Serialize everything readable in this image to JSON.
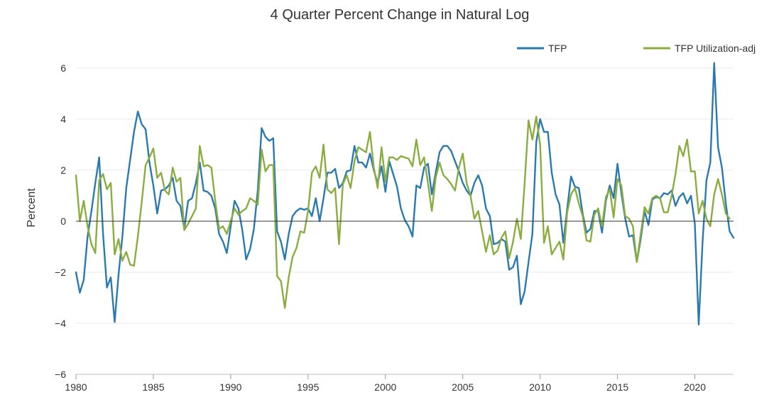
{
  "chart_data": {
    "type": "line",
    "title": "4 Quarter Percent Change in Natural Log",
    "xlabel": "",
    "ylabel": "Percent",
    "xlim": [
      1980,
      2022.5
    ],
    "ylim": [
      -6,
      6
    ],
    "x_ticks": [
      1980,
      1985,
      1990,
      1995,
      2000,
      2005,
      2010,
      2015,
      2020
    ],
    "y_ticks": [
      -6,
      -4,
      -2,
      0,
      2,
      4,
      6
    ],
    "y_tick_labels": [
      "−6",
      "−4",
      "−2",
      "0",
      "2",
      "4",
      "6"
    ],
    "grid": true,
    "legend_position": "top-right",
    "x_start": 1980,
    "x_step": 0.25,
    "series": [
      {
        "name": "TFP",
        "color": "#2a7ab0",
        "values": [
          -2.0,
          -2.8,
          -2.3,
          -0.6,
          0.4,
          1.5,
          2.5,
          -0.5,
          -2.6,
          -2.2,
          -3.95,
          -2.1,
          -0.6,
          1.3,
          2.4,
          3.5,
          4.3,
          3.8,
          3.6,
          2.3,
          1.4,
          0.3,
          1.2,
          1.25,
          1.4,
          1.7,
          0.8,
          0.6,
          -0.3,
          0.8,
          0.9,
          1.5,
          2.3,
          1.2,
          1.15,
          1.0,
          0.5,
          -0.5,
          -0.8,
          -1.25,
          -0.2,
          0.8,
          0.5,
          -0.35,
          -1.5,
          -1.1,
          -0.3,
          1.2,
          3.65,
          3.3,
          3.15,
          3.25,
          -0.4,
          -0.8,
          -1.5,
          -0.5,
          0.2,
          0.4,
          0.5,
          0.45,
          0.5,
          0.2,
          0.9,
          0.0,
          0.9,
          1.9,
          1.9,
          2.05,
          1.3,
          1.5,
          1.95,
          2.0,
          2.95,
          2.3,
          2.3,
          2.1,
          2.65,
          2.0,
          1.5,
          2.15,
          1.15,
          2.35,
          1.85,
          1.35,
          0.5,
          0.05,
          -0.2,
          -0.6,
          1.4,
          1.3,
          2.1,
          2.25,
          1.05,
          1.9,
          2.7,
          2.95,
          2.95,
          2.75,
          2.35,
          1.95,
          1.5,
          1.2,
          1.0,
          1.5,
          1.8,
          1.4,
          0.5,
          0.2,
          -0.9,
          -0.85,
          -0.7,
          -0.8,
          -1.9,
          -1.8,
          -1.35,
          -3.25,
          -2.75,
          -1.6,
          -0.5,
          3.1,
          4.0,
          3.5,
          3.5,
          1.9,
          1.05,
          0.65,
          -0.85,
          0.5,
          1.75,
          1.35,
          1.3,
          0.3,
          -0.45,
          -0.3,
          0.4,
          0.4,
          -0.45,
          0.8,
          1.4,
          0.9,
          2.25,
          1.1,
          0.1,
          -0.6,
          -0.55,
          -1.6,
          -0.7,
          0.4,
          -0.15,
          0.85,
          0.95,
          0.9,
          1.1,
          1.05,
          1.2,
          0.6,
          0.95,
          1.1,
          0.7,
          1.0,
          -0.1,
          -4.05,
          -0.8,
          1.6,
          2.3,
          6.2,
          2.9,
          2.1,
          0.7,
          -0.4,
          -0.65
        ]
      },
      {
        "name": "TFP Utilization-adj",
        "color": "#8bad3f",
        "values": [
          1.8,
          0.0,
          0.8,
          -0.2,
          -0.9,
          -1.25,
          1.6,
          1.85,
          1.25,
          1.5,
          -1.3,
          -0.7,
          -1.55,
          -1.2,
          -1.7,
          -1.75,
          -0.6,
          0.75,
          2.2,
          2.5,
          2.85,
          1.7,
          1.9,
          1.2,
          1.05,
          2.1,
          1.55,
          1.7,
          -0.35,
          -0.1,
          0.2,
          0.5,
          2.95,
          2.15,
          2.2,
          2.1,
          0.8,
          -0.3,
          -0.2,
          -0.5,
          0.0,
          0.5,
          0.25,
          0.4,
          0.5,
          0.9,
          0.8,
          0.65,
          2.8,
          1.95,
          2.2,
          2.2,
          -2.15,
          -2.35,
          -3.4,
          -2.2,
          -1.4,
          -1.05,
          -0.4,
          -0.45,
          0.4,
          1.9,
          2.15,
          1.7,
          3.0,
          1.25,
          1.1,
          1.3,
          -0.9,
          1.45,
          1.8,
          1.3,
          2.35,
          2.9,
          2.8,
          2.7,
          3.5,
          2.1,
          1.3,
          2.9,
          1.55,
          2.5,
          2.5,
          2.4,
          2.55,
          2.5,
          2.45,
          2.15,
          3.2,
          2.2,
          2.5,
          1.5,
          0.4,
          1.7,
          2.3,
          1.8,
          1.65,
          1.45,
          1.2,
          2.1,
          2.65,
          1.5,
          1.0,
          0.1,
          0.4,
          -0.4,
          -1.2,
          -0.55,
          -1.3,
          -1.15,
          -0.65,
          -0.4,
          -1.45,
          -0.8,
          0.1,
          -0.7,
          1.5,
          3.95,
          3.2,
          4.1,
          3.0,
          -0.85,
          -0.2,
          -1.3,
          -1.05,
          -0.8,
          -1.5,
          0.35,
          1.05,
          1.3,
          0.7,
          0.2,
          -0.75,
          -0.8,
          0.25,
          0.5,
          -0.2,
          0.95,
          1.25,
          0.15,
          1.65,
          1.4,
          0.2,
          0.1,
          -0.2,
          -1.6,
          -0.5,
          0.55,
          0.3,
          0.9,
          1.0,
          0.9,
          0.35,
          0.35,
          1.0,
          1.85,
          2.95,
          2.55,
          3.2,
          1.95,
          1.95,
          0.3,
          0.8,
          0.1,
          -0.2,
          1.05,
          1.65,
          1.05,
          0.3,
          0.1
        ]
      }
    ]
  }
}
